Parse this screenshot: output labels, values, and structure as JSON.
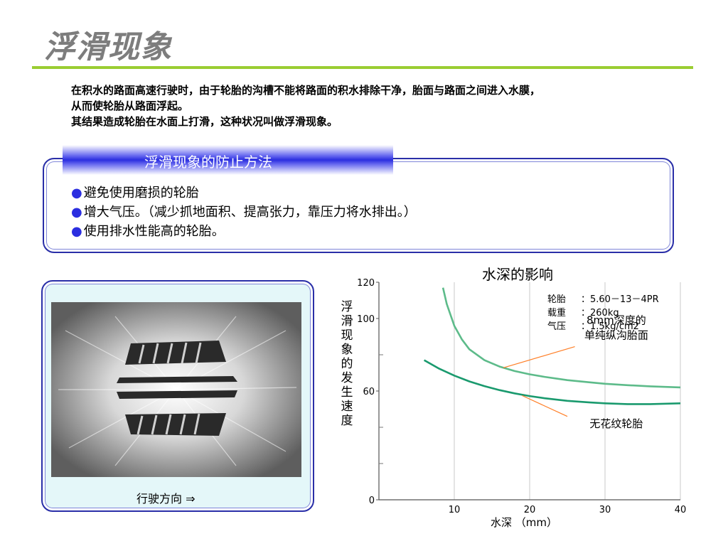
{
  "title": "浮滑现象",
  "intro": {
    "line1": "在积水的路面高速行驶时，由于轮胎的沟槽不能将路面的积水排除干净，胎面与路面之间进入水膜，",
    "line2": "从而使轮胎从路面浮起。",
    "line3": "其结果造成轮胎在水面上打滑，这种状况叫做浮滑现象。"
  },
  "prevention": {
    "header": "浮滑现象的防止方法",
    "bullet_symbol": "●",
    "items": [
      "避免使用磨损的轮胎",
      "增大气压。（减少抓地面积、提高张力，靠压力将水排出。）",
      "使用排水性能高的轮胎。"
    ]
  },
  "photo": {
    "caption": "行驶方向 ⇒"
  },
  "colors": {
    "title_rule": "#9acd32",
    "box_border": "#2a2fa8",
    "header_band": "#2b2ee0",
    "curve_upper": "#5dbb8a",
    "curve_lower": "#1a9a6e",
    "leader": "#ff7f27"
  },
  "chart_data": {
    "type": "line",
    "title": "水深的影响",
    "xlabel": "水深 （mm）",
    "ylabel": "浮滑现象的发生速度",
    "xlim": [
      0,
      40
    ],
    "ylim": [
      0,
      120
    ],
    "x_ticks": [
      "10",
      "20",
      "30",
      "40"
    ],
    "y_ticks": [
      "0",
      "60",
      "100",
      "120"
    ],
    "grid": "vertical",
    "specs": [
      {
        "label": "轮胎",
        "value": "：5.60－13－4PR"
      },
      {
        "label": "载重",
        "value": "：260kg"
      },
      {
        "label": "气压",
        "value": "：1.5kg/cm2"
      }
    ],
    "series": [
      {
        "name": "8mm深度的单纯纵沟胎面",
        "annotation": [
          "8mm深度的",
          "单纯纵沟胎面"
        ],
        "color": "#5dbb8a",
        "x": [
          8.5,
          9,
          10,
          11,
          12,
          14,
          16,
          18,
          20,
          22,
          25,
          28,
          30,
          33,
          36,
          40
        ],
        "y": [
          117,
          108,
          96,
          88.5,
          83,
          77,
          73.5,
          71,
          69.2,
          67.8,
          66,
          64.8,
          64,
          63.2,
          62.6,
          62
        ]
      },
      {
        "name": "无花纹轮胎",
        "annotation": [
          "无花纹轮胎"
        ],
        "color": "#1a9a6e",
        "x": [
          6,
          8,
          10,
          12,
          14,
          16,
          18,
          20,
          22,
          25,
          28,
          30,
          33,
          36,
          40
        ],
        "y": [
          77,
          72.3,
          68.5,
          65.3,
          62.7,
          60.5,
          58.7,
          57.2,
          56,
          54.6,
          53.7,
          53.2,
          52.8,
          52.8,
          53.2
        ]
      }
    ]
  }
}
